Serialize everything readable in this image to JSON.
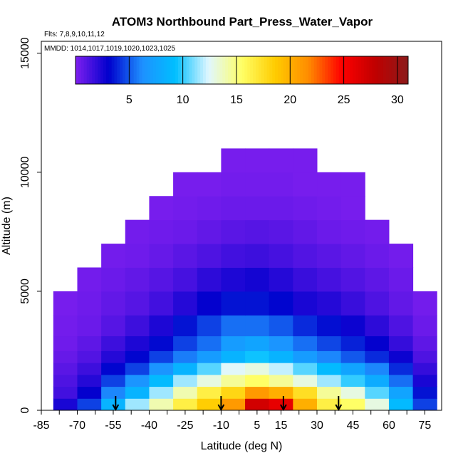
{
  "chart_data": {
    "type": "heatmap",
    "title": "ATOM3 Northbound Part_Press_Water_Vapor",
    "flights_note": "Flts: 7,8,9,10,11,12",
    "dates_note": "MMDD: 1014,1017,1019,1020,1023,1025",
    "xlabel": "Latitude (deg N)",
    "ylabel": "Altitude (m)",
    "xlim": [
      -85,
      82
    ],
    "ylim": [
      0,
      15500
    ],
    "x_ticks": [
      -85,
      -70,
      -55,
      -40,
      -25,
      -10,
      5,
      15,
      30,
      45,
      60,
      75
    ],
    "y_ticks": [
      0,
      5000,
      10000,
      15000
    ],
    "colorbar": {
      "range": [
        0,
        31
      ],
      "ticks": [
        5,
        10,
        15,
        20,
        25,
        30
      ],
      "colors": [
        "#7f1fef",
        "#0000cd",
        "#1e90ff",
        "#00bfff",
        "#e0f7ff",
        "#ffff66",
        "#ffcc00",
        "#ff8c00",
        "#ff0000",
        "#c00000",
        "#8b1a1a"
      ]
    },
    "flight_markers_lat": [
      -54,
      -10,
      16,
      39
    ],
    "altitude_bins_m": [
      250,
      750,
      1250,
      1750,
      2250,
      2750,
      3500,
      4500,
      5500,
      6500,
      7500,
      8500,
      9500,
      10500
    ],
    "latitude_bins": [
      -75,
      -65,
      -55,
      -45,
      -35,
      -25,
      -15,
      -5,
      5,
      15,
      25,
      35,
      45,
      55,
      65,
      75
    ],
    "values": [
      [
        2.5,
        4.5,
        8.5,
        11.5,
        14.0,
        16.5,
        18.5,
        21.0,
        27.0,
        26.0,
        20.0,
        16.5,
        15.5,
        13.0,
        9.0,
        4.5
      ],
      [
        1.5,
        3.0,
        6.0,
        8.5,
        11.5,
        14.0,
        16.5,
        18.0,
        21.0,
        20.0,
        17.5,
        14.5,
        13.0,
        10.5,
        7.5,
        3.5
      ],
      [
        1.2,
        2.2,
        4.5,
        6.5,
        9.0,
        11.5,
        13.0,
        14.5,
        15.5,
        14.5,
        13.0,
        11.5,
        10.0,
        8.0,
        5.5,
        2.5
      ],
      [
        0.9,
        1.6,
        3.2,
        4.5,
        6.5,
        8.5,
        10.5,
        12.5,
        13.0,
        12.0,
        10.5,
        9.0,
        7.5,
        6.0,
        4.0,
        1.8
      ],
      [
        0.6,
        1.1,
        2.2,
        3.2,
        4.5,
        5.8,
        7.0,
        8.5,
        9.5,
        8.5,
        7.0,
        6.0,
        5.0,
        4.0,
        2.8,
        1.2
      ],
      [
        0.4,
        0.8,
        1.6,
        2.4,
        3.3,
        4.5,
        5.5,
        7.0,
        7.5,
        6.5,
        5.5,
        4.6,
        3.8,
        3.0,
        1.8,
        0.8
      ],
      [
        0.3,
        0.5,
        1.0,
        1.6,
        2.4,
        3.5,
        4.5,
        5.5,
        5.5,
        5.0,
        4.0,
        3.4,
        2.8,
        2.0,
        1.2,
        0.5
      ],
      [
        0.2,
        0.4,
        0.7,
        1.0,
        1.5,
        2.2,
        3.0,
        3.5,
        3.5,
        3.2,
        2.5,
        2.2,
        1.7,
        1.2,
        0.7,
        0.3
      ],
      [
        null,
        0.3,
        0.5,
        0.7,
        1.0,
        1.4,
        2.0,
        2.4,
        2.6,
        2.2,
        1.7,
        1.4,
        1.1,
        0.8,
        0.5,
        null
      ],
      [
        null,
        null,
        0.3,
        0.4,
        0.6,
        0.9,
        1.2,
        1.5,
        1.6,
        1.4,
        1.1,
        0.9,
        0.7,
        0.5,
        0.3,
        null
      ],
      [
        null,
        null,
        null,
        0.3,
        0.4,
        0.5,
        0.7,
        0.9,
        1.0,
        0.9,
        0.7,
        0.5,
        0.4,
        0.3,
        null,
        null
      ],
      [
        null,
        null,
        null,
        null,
        0.2,
        0.3,
        0.4,
        0.5,
        0.5,
        0.5,
        0.4,
        0.3,
        0.2,
        null,
        null,
        null
      ],
      [
        null,
        null,
        null,
        null,
        null,
        0.2,
        0.2,
        0.3,
        0.3,
        0.3,
        0.2,
        0.2,
        0.2,
        null,
        null,
        null
      ],
      [
        null,
        null,
        null,
        null,
        null,
        null,
        null,
        0.2,
        0.2,
        0.2,
        0.2,
        null,
        null,
        null,
        null,
        null
      ]
    ]
  }
}
